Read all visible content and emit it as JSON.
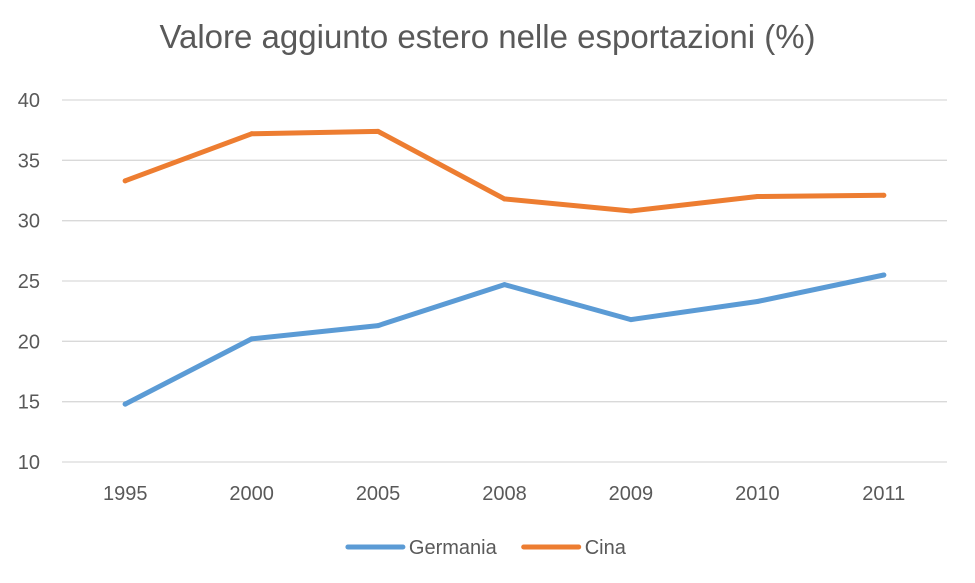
{
  "chart_data": {
    "type": "line",
    "title": "Valore aggiunto estero nelle esportazioni (%)",
    "xlabel": "",
    "ylabel": "",
    "categories": [
      "1995",
      "2000",
      "2005",
      "2008",
      "2009",
      "2010",
      "2011"
    ],
    "ylim": [
      10,
      40
    ],
    "yticks": [
      10,
      15,
      20,
      25,
      30,
      35,
      40
    ],
    "grid": true,
    "legend_position": "bottom",
    "series": [
      {
        "name": "Germania",
        "color": "#5B9BD5",
        "values": [
          14.8,
          20.2,
          21.3,
          24.7,
          21.8,
          23.3,
          25.5
        ]
      },
      {
        "name": "Cina",
        "color": "#ED7D31",
        "values": [
          33.3,
          37.2,
          37.4,
          31.8,
          30.8,
          32.0,
          32.1
        ]
      }
    ]
  }
}
